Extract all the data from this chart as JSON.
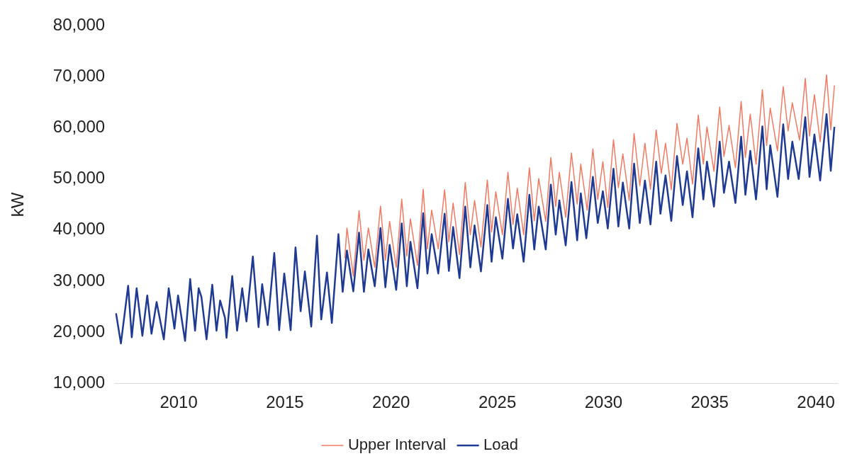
{
  "chart_data": {
    "type": "line",
    "ylabel": "kW",
    "xlim": [
      2007,
      2041
    ],
    "xticks": [
      2010,
      2015,
      2020,
      2025,
      2030,
      2035,
      2040
    ],
    "ylim": [
      10000,
      80000
    ],
    "yticks": [
      {
        "value": 10000,
        "label": "10,000"
      },
      {
        "value": 20000,
        "label": "20,000"
      },
      {
        "value": 30000,
        "label": "30,000"
      },
      {
        "value": 40000,
        "label": "40,000"
      },
      {
        "value": 50000,
        "label": "50,000"
      },
      {
        "value": 60000,
        "label": "60,000"
      },
      {
        "value": 70000,
        "label": "70,000"
      },
      {
        "value": 80000,
        "label": "80,000"
      }
    ],
    "grid": false,
    "legend": "bottom",
    "marker": "none",
    "line_style": "solid",
    "series": [
      {
        "name": "Upper Interval",
        "color": "#f07a63",
        "x": [
          2017.82,
          2017.92,
          2018.22,
          2018.49,
          2018.72,
          2018.93,
          2019.23,
          2019.5,
          2019.73,
          2019.93,
          2020.24,
          2020.5,
          2020.74,
          2020.91,
          2021.24,
          2021.51,
          2021.71,
          2021.91,
          2022.22,
          2022.52,
          2022.72,
          2022.92,
          2023.22,
          2023.49,
          2023.73,
          2023.93,
          2024.23,
          2024.53,
          2024.73,
          2024.93,
          2025.24,
          2025.5,
          2025.74,
          2025.94,
          2026.24,
          2026.51,
          2026.74,
          2026.95,
          2027.28,
          2027.52,
          2027.75,
          2027.92,
          2028.22,
          2028.49,
          2028.76,
          2028.93,
          2029.23,
          2029.5,
          2029.73,
          2029.97,
          2030.2,
          2030.47,
          2030.7,
          2030.91,
          2031.21,
          2031.44,
          2031.71,
          2031.95,
          2032.21,
          2032.48,
          2032.72,
          2032.92,
          2033.19,
          2033.46,
          2033.73,
          2033.93,
          2034.19,
          2034.46,
          2034.7,
          2034.87,
          2035.2,
          2035.47,
          2035.67,
          2035.91,
          2036.21,
          2036.48,
          2036.68,
          2036.91,
          2037.18,
          2037.48,
          2037.68,
          2037.85,
          2038.19,
          2038.46,
          2038.69,
          2038.89,
          2039.23,
          2039.5,
          2039.7,
          2039.93,
          2040.2,
          2040.5,
          2040.7,
          2040.87
        ],
        "values": [
          34500,
          40400,
          31000,
          43800,
          34100,
          40400,
          32700,
          44700,
          34100,
          41700,
          32700,
          46000,
          34900,
          42200,
          33100,
          48000,
          36300,
          43900,
          36300,
          47900,
          37700,
          45300,
          35200,
          49300,
          39100,
          45800,
          36700,
          49800,
          39600,
          47500,
          39100,
          51300,
          41100,
          48200,
          39100,
          52200,
          41800,
          50100,
          41700,
          54200,
          44600,
          51300,
          42500,
          55100,
          45100,
          52900,
          43900,
          55900,
          46000,
          53400,
          44400,
          57700,
          48300,
          54900,
          45800,
          58900,
          48700,
          57000,
          48000,
          59600,
          51100,
          57000,
          47900,
          60900,
          52900,
          58000,
          49000,
          62500,
          52900,
          60200,
          51500,
          64100,
          54400,
          60500,
          52200,
          65200,
          54200,
          62700,
          52900,
          67500,
          56600,
          63900,
          55500,
          68100,
          59400,
          64900,
          57600,
          69700,
          58400,
          66500,
          57300,
          70400,
          59600,
          68300
        ]
      },
      {
        "name": "Load",
        "color": "#1f3a93",
        "x": [
          2007.05,
          2007.28,
          2007.62,
          2007.79,
          2008.02,
          2008.29,
          2008.52,
          2008.72,
          2008.96,
          2009.3,
          2009.53,
          2009.8,
          2009.97,
          2010.3,
          2010.54,
          2010.77,
          2010.94,
          2011.07,
          2011.31,
          2011.58,
          2011.78,
          2011.95,
          2012.18,
          2012.25,
          2012.52,
          2012.75,
          2012.99,
          2013.19,
          2013.49,
          2013.76,
          2013.93,
          2014.19,
          2014.5,
          2014.73,
          2014.97,
          2015.27,
          2015.5,
          2015.74,
          2015.94,
          2016.24,
          2016.51,
          2016.71,
          2016.98,
          2017.21,
          2017.52,
          2017.72,
          2017.92,
          2018.22,
          2018.49,
          2018.72,
          2018.93,
          2019.23,
          2019.5,
          2019.73,
          2019.93,
          2020.24,
          2020.5,
          2020.74,
          2020.91,
          2021.24,
          2021.51,
          2021.71,
          2021.91,
          2022.22,
          2022.52,
          2022.72,
          2022.92,
          2023.22,
          2023.49,
          2023.73,
          2023.93,
          2024.23,
          2024.53,
          2024.73,
          2024.93,
          2025.24,
          2025.5,
          2025.74,
          2025.94,
          2026.24,
          2026.51,
          2026.74,
          2026.95,
          2027.28,
          2027.52,
          2027.75,
          2027.92,
          2028.22,
          2028.49,
          2028.76,
          2028.93,
          2029.19,
          2029.5,
          2029.73,
          2029.97,
          2030.2,
          2030.47,
          2030.7,
          2030.91,
          2031.21,
          2031.44,
          2031.71,
          2031.95,
          2032.21,
          2032.48,
          2032.68,
          2032.92,
          2033.19,
          2033.46,
          2033.73,
          2033.93,
          2034.19,
          2034.46,
          2034.7,
          2034.87,
          2035.2,
          2035.47,
          2035.67,
          2035.91,
          2036.21,
          2036.48,
          2036.68,
          2036.91,
          2037.18,
          2037.48,
          2037.68,
          2037.85,
          2038.19,
          2038.46,
          2038.69,
          2038.89,
          2039.19,
          2039.5,
          2039.7,
          2039.93,
          2040.2,
          2040.5,
          2040.7,
          2040.87
        ],
        "values": [
          23700,
          17800,
          29100,
          19000,
          28600,
          19300,
          27200,
          19700,
          25900,
          18600,
          28600,
          20700,
          27200,
          18300,
          30400,
          20300,
          28600,
          26900,
          18600,
          29300,
          20300,
          26200,
          22800,
          18900,
          31000,
          20300,
          28600,
          22100,
          34800,
          21000,
          29400,
          21400,
          35500,
          20400,
          31500,
          20400,
          36600,
          24100,
          31900,
          21100,
          38900,
          22500,
          31700,
          21800,
          39200,
          27900,
          36000,
          28000,
          39500,
          27900,
          36200,
          29000,
          40400,
          28800,
          37100,
          28300,
          41300,
          29000,
          37700,
          28600,
          43300,
          31500,
          39200,
          31500,
          43200,
          32000,
          40600,
          30600,
          44600,
          32700,
          40900,
          31900,
          44900,
          33800,
          42500,
          34400,
          46100,
          36400,
          43100,
          33800,
          46900,
          36200,
          44600,
          36200,
          48900,
          39100,
          45800,
          37000,
          49400,
          38000,
          47200,
          38400,
          50400,
          41400,
          47600,
          40300,
          52000,
          40700,
          49300,
          40300,
          53000,
          41400,
          49700,
          41100,
          53400,
          43200,
          50700,
          41800,
          54500,
          44900,
          51500,
          42500,
          56000,
          46000,
          53400,
          44600,
          57300,
          47300,
          53400,
          45300,
          58300,
          46900,
          55500,
          46000,
          60300,
          48000,
          56600,
          46500,
          60700,
          50000,
          57300,
          50000,
          62100,
          50400,
          58700,
          49700,
          62700,
          51600,
          60200
        ]
      }
    ]
  }
}
